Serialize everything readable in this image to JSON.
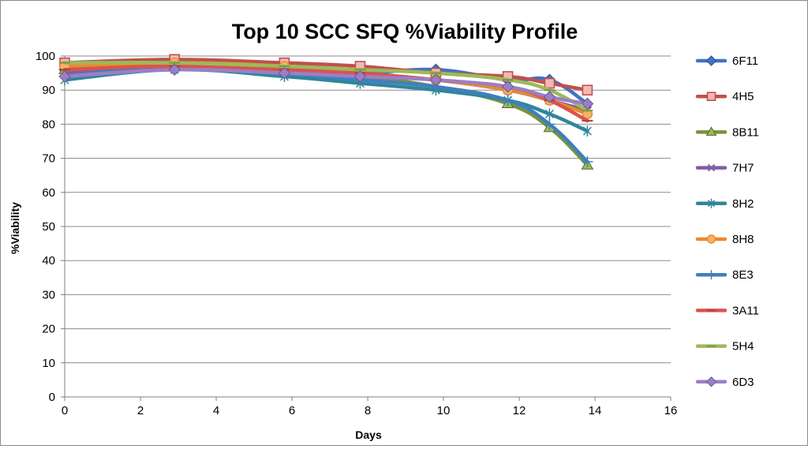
{
  "chart_data": {
    "type": "line",
    "title": "Top 10 SCC SFQ %Viability  Profile",
    "xlabel": "Days",
    "ylabel": "%Viability",
    "xlim": [
      0,
      16
    ],
    "ylim": [
      0,
      100
    ],
    "xticks": [
      0,
      2,
      4,
      6,
      8,
      10,
      12,
      14,
      16
    ],
    "yticks": [
      0,
      10,
      20,
      30,
      40,
      50,
      60,
      70,
      80,
      90,
      100
    ],
    "grid": "horizontal",
    "legend_position": "right",
    "smooth": true,
    "series": [
      {
        "name": "6F11",
        "color": "#4472C4",
        "marker": "diamond",
        "x": [
          0,
          2.9,
          5.8,
          7.8,
          9.8,
          11.7,
          12.8,
          13.8
        ],
        "y": [
          96,
          97,
          96,
          95,
          96,
          93,
          93,
          86
        ]
      },
      {
        "name": "4H5",
        "color": "#C0504D",
        "marker": "square",
        "x": [
          0,
          2.9,
          5.8,
          7.8,
          9.8,
          11.7,
          12.8,
          13.8
        ],
        "y": [
          98,
          99,
          98,
          97,
          95,
          94,
          92,
          90
        ]
      },
      {
        "name": "8B11",
        "color": "#77933C",
        "marker": "triangle",
        "x": [
          0,
          2.9,
          5.8,
          7.8,
          9.8,
          11.7,
          12.8,
          13.8
        ],
        "y": [
          96,
          97,
          95,
          94,
          91,
          86,
          79,
          68
        ]
      },
      {
        "name": "7H7",
        "color": "#7F5FA3",
        "marker": "x",
        "x": [
          0,
          2.9,
          5.8,
          7.8,
          9.8,
          11.7,
          12.8,
          13.8
        ],
        "y": [
          95,
          97,
          96,
          94,
          93,
          90,
          87,
          84
        ]
      },
      {
        "name": "8H2",
        "color": "#31859C",
        "marker": "star",
        "x": [
          0,
          2.9,
          5.8,
          7.8,
          9.8,
          11.7,
          12.8,
          13.8
        ],
        "y": [
          93,
          96,
          94,
          92,
          90,
          87,
          83,
          78
        ]
      },
      {
        "name": "8H8",
        "color": "#E98A2C",
        "marker": "circle",
        "x": [
          0,
          2.9,
          5.8,
          7.8,
          9.8,
          11.7,
          12.8,
          13.8
        ],
        "y": [
          97,
          98,
          97,
          95,
          93,
          90,
          87,
          83
        ]
      },
      {
        "name": "8E3",
        "color": "#3F7FBF",
        "marker": "plus",
        "x": [
          0,
          2.9,
          5.8,
          7.8,
          9.8,
          11.7,
          12.8,
          13.8
        ],
        "y": [
          94,
          97,
          95,
          93,
          91,
          87,
          80,
          69
        ]
      },
      {
        "name": "3A11",
        "color": "#D9534F",
        "marker": "dash",
        "x": [
          0,
          2.9,
          5.8,
          7.8,
          9.8,
          11.7,
          12.8,
          13.8
        ],
        "y": [
          96,
          97,
          96,
          95,
          93,
          91,
          87,
          81
        ]
      },
      {
        "name": "5H4",
        "color": "#9BBB59",
        "marker": "dash",
        "x": [
          0,
          2.9,
          5.8,
          7.8,
          9.8,
          11.7,
          12.8,
          13.8
        ],
        "y": [
          98,
          98,
          97,
          96,
          95,
          93,
          90,
          84
        ]
      },
      {
        "name": "6D3",
        "color": "#9B7FC6",
        "marker": "diamond",
        "x": [
          0,
          2.9,
          5.8,
          7.8,
          9.8,
          11.7,
          12.8,
          13.8
        ],
        "y": [
          94,
          96,
          95,
          94,
          93,
          91,
          88,
          86
        ]
      }
    ]
  }
}
